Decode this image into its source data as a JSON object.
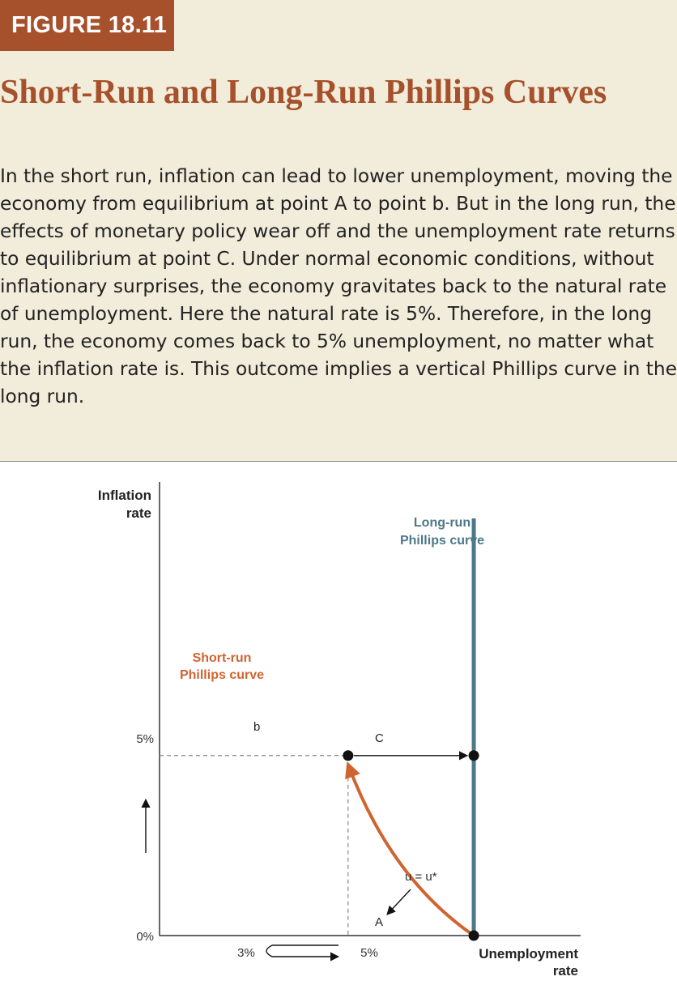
{
  "figure": {
    "label": "FIGURE 18.11",
    "title": "Short-Run and Long-Run Phillips Curves",
    "description": "In the short run, inflation can lead to lower unemployment, moving the economy from equilibrium at point A to point b. But in the long run, the effects of monetary policy wear off and the unemployment rate returns to equilibrium at point C. Under normal economic conditions, without inflationary surprises, the economy gravitates back to the natural rate of unemployment. Here the natural rate is 5%. Therefore, in the long run, the economy comes back to 5% unemployment, no matter what the inflation rate is. This outcome implies a vertical Phillips curve in the long run."
  },
  "colors": {
    "accent": "#a6512b",
    "short_run": "#cf6431",
    "long_run": "#4d7888",
    "panel_bg": "#f2ecdb"
  },
  "chart_data": {
    "type": "line",
    "xlabel_line1": "Unemployment",
    "xlabel_line2": "rate",
    "ylabel_line1": "Inflation",
    "ylabel_line2": "rate",
    "x_ticks": [
      {
        "value": 3,
        "label": "3%"
      },
      {
        "value": 5,
        "label": "5%"
      }
    ],
    "y_ticks": [
      {
        "value": 0,
        "label": "0%"
      },
      {
        "value": 5,
        "label": "5%"
      }
    ],
    "xlim": [
      0,
      6.7
    ],
    "ylim": [
      0,
      12.6
    ],
    "series": [
      {
        "name_line1": "Short-run",
        "name_line2": "Phillips curve",
        "from": [
          5,
          0
        ],
        "to": [
          3,
          5
        ]
      },
      {
        "name_line1": "Long-run",
        "name_line2": "Phillips curve",
        "x": 5,
        "y_range": [
          0,
          12.6
        ]
      }
    ],
    "points": [
      {
        "label": "A",
        "x": 5,
        "y": 0
      },
      {
        "label": "b",
        "x": 3,
        "y": 5
      },
      {
        "label": "C",
        "x": 5,
        "y": 5
      }
    ],
    "annotations": {
      "natural_rate": "u = u*"
    }
  }
}
